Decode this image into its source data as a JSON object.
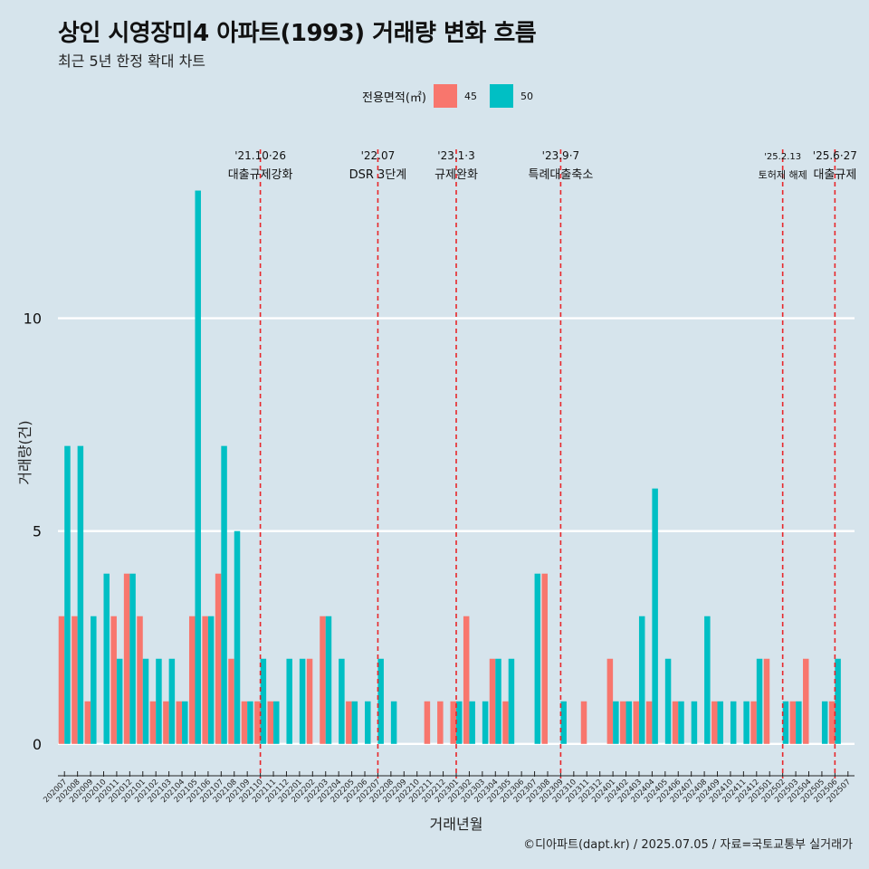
{
  "title": "상인 시영장미4 아파트(1993) 거래량 변화 흐름",
  "subtitle": "최근 5년 한정 확대 차트",
  "caption": "©디아파트(dapt.kr) / 2025.07.05 / 자료=국토교통부 실거래가",
  "colors": {
    "s45": "#f8766d",
    "s50": "#00bfc4",
    "vline": "#e8262a",
    "grid": "#ffffff"
  },
  "legend": {
    "title": "전용면적(㎡)",
    "items": [
      "45",
      "50"
    ]
  },
  "chart_data": {
    "type": "bar",
    "title": "상인 시영장미4 아파트(1993) 거래량 변화 흐름",
    "xlabel": "거래년월",
    "ylabel": "거래량(건)",
    "ylim": [
      -0.6,
      14.5
    ],
    "yticks": [
      0,
      5,
      10
    ],
    "categories": [
      "202007",
      "202008",
      "202009",
      "202010",
      "202011",
      "202012",
      "202101",
      "202102",
      "202103",
      "202104",
      "202105",
      "202106",
      "202107",
      "202108",
      "202109",
      "202110",
      "202111",
      "202112",
      "202201",
      "202202",
      "202203",
      "202204",
      "202205",
      "202206",
      "202207",
      "202208",
      "202209",
      "202210",
      "202211",
      "202212",
      "202301",
      "202302",
      "202303",
      "202304",
      "202305",
      "202306",
      "202307",
      "202308",
      "202309",
      "202310",
      "202311",
      "202312",
      "202401",
      "202402",
      "202403",
      "202404",
      "202405",
      "202406",
      "202407",
      "202408",
      "202409",
      "202410",
      "202411",
      "202412",
      "202501",
      "202502",
      "202503",
      "202504",
      "202505",
      "202506",
      "202507"
    ],
    "series": [
      {
        "name": "45",
        "values": [
          3,
          3,
          1,
          0,
          3,
          4,
          3,
          1,
          1,
          1,
          3,
          3,
          4,
          2,
          1,
          1,
          1,
          0,
          0,
          2,
          3,
          0,
          1,
          0,
          0,
          0,
          0,
          0,
          1,
          1,
          1,
          3,
          0,
          2,
          1,
          0,
          0,
          4,
          0,
          0,
          1,
          0,
          2,
          1,
          1,
          1,
          0,
          1,
          0,
          0,
          1,
          0,
          0,
          1,
          2,
          0,
          1,
          2,
          0,
          1,
          0
        ]
      },
      {
        "name": "50",
        "values": [
          7,
          7,
          3,
          4,
          2,
          4,
          2,
          2,
          2,
          1,
          13,
          3,
          7,
          5,
          1,
          2,
          1,
          2,
          2,
          0,
          3,
          2,
          1,
          1,
          2,
          1,
          0,
          0,
          0,
          0,
          1,
          1,
          1,
          2,
          2,
          0,
          4,
          0,
          1,
          0,
          0,
          0,
          1,
          1,
          3,
          6,
          2,
          1,
          1,
          3,
          1,
          1,
          1,
          2,
          0,
          1,
          1,
          0,
          1,
          2,
          0
        ]
      }
    ],
    "annotations": [
      {
        "month": "202110",
        "line1": "'21.10·26",
        "line2": "대출규제강화"
      },
      {
        "month": "202207",
        "line1": "'22.07",
        "line2": "DSR 3단계"
      },
      {
        "month": "202301",
        "line1": "'23.1·3",
        "line2": "규제완화"
      },
      {
        "month": "202309",
        "line1": "'23.9·7",
        "line2": "특례대출축소"
      },
      {
        "month": "202502",
        "line1": "'25.2.13",
        "line2": "토허제 해제"
      },
      {
        "month": "202506",
        "line1": "'25.6·27",
        "line2": "대출규제"
      }
    ]
  }
}
